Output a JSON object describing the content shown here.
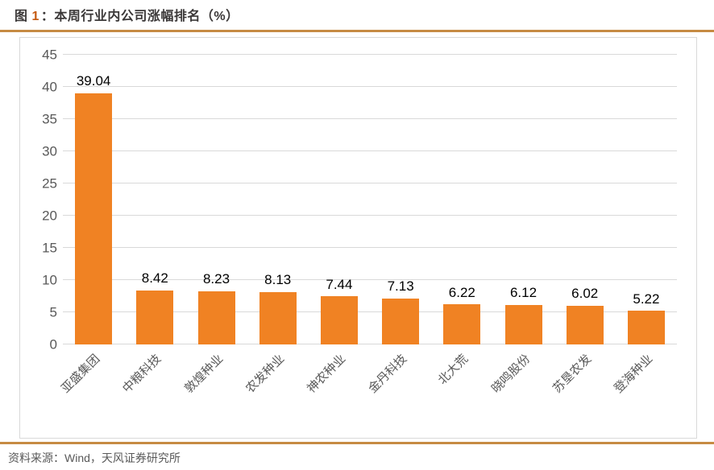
{
  "title": {
    "figure_label": "图",
    "figure_number": "1",
    "text": "：本周行业内公司涨幅排名（%）"
  },
  "footer": {
    "source": "资料来源：Wind，天风证券研究所"
  },
  "colors": {
    "bar": "#f08223",
    "divider": "#c68b43",
    "gridline": "#d9d9d9",
    "axis_text": "#595959",
    "value_label_text": "#000000",
    "title_text": "#3b3838",
    "figure_number_accent": "#c55a11"
  },
  "chart_data": {
    "type": "bar",
    "title": "本周行业内公司涨幅排名（%）",
    "categories": [
      "亚盛集团",
      "中粮科技",
      "敦煌种业",
      "农发种业",
      "神农种业",
      "金丹科技",
      "北大荒",
      "晓鸣股份",
      "苏垦农发",
      "登海种业"
    ],
    "values": [
      39.04,
      8.42,
      8.23,
      8.13,
      7.44,
      7.13,
      6.22,
      6.12,
      6.02,
      5.22
    ],
    "value_labels": [
      "39.04",
      "8.42",
      "8.23",
      "8.13",
      "7.44",
      "7.13",
      "6.22",
      "6.12",
      "6.02",
      "5.22"
    ],
    "xlabel": "",
    "ylabel": "",
    "ylim": [
      0,
      45
    ],
    "yticks": [
      45,
      40,
      35,
      30,
      25,
      20,
      15,
      10,
      5,
      0
    ],
    "grid": true,
    "legend": false,
    "x_label_rotation_deg": 45
  }
}
